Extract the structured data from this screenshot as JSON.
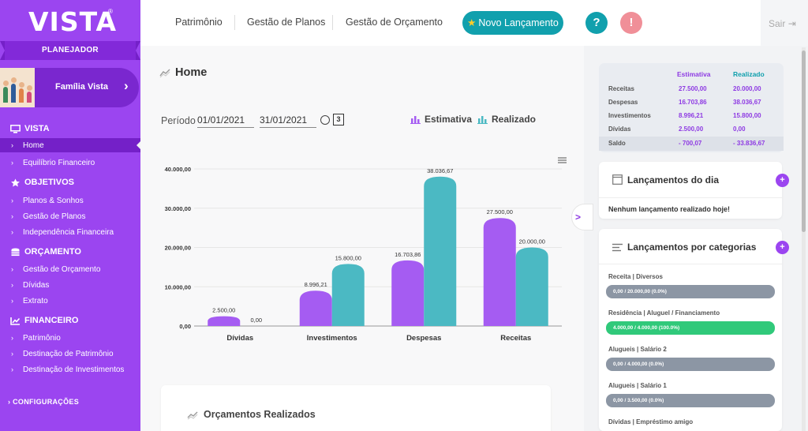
{
  "brand": {
    "logo": "VISTA",
    "logo_mark": "®",
    "role": "PLANEJADOR"
  },
  "family": {
    "name": "Família Vista"
  },
  "sidebar": {
    "sections": [
      {
        "title": "VISTA",
        "icon": "monitor-icon",
        "items": [
          "Home",
          "Equilíbrio Financeiro"
        ]
      },
      {
        "title": "OBJETIVOS",
        "icon": "star-icon",
        "items": [
          "Planos & Sonhos",
          "Gestão de Planos",
          "Independência Financeira"
        ]
      },
      {
        "title": "ORÇAMENTO",
        "icon": "coins-icon",
        "items": [
          "Gestão de Orçamento",
          "Dívidas",
          "Extrato"
        ]
      },
      {
        "title": "FINANCEIRO",
        "icon": "line-chart-icon",
        "items": [
          "Patrimônio",
          "Destinação de Patrimônio",
          "Destinação de Investimentos"
        ]
      }
    ],
    "active_item": "Home",
    "config": "CONFIGURAÇÕES"
  },
  "topbar": {
    "nav": [
      "Patrimônio",
      "Gestão de Planos",
      "Gestão de Orçamento"
    ],
    "new_button": "Novo Lançamento",
    "help": "?",
    "alert": "!",
    "logout": "Sair"
  },
  "main": {
    "title": "Home",
    "periodo_label": "Período",
    "date_from": "01/01/2021",
    "date_to": "31/01/2021",
    "history_count": "3",
    "legend_estimativa": "Estimativa",
    "legend_realizado": "Realizado",
    "bottom_card_title": "Orçamentos Realizados"
  },
  "colors": {
    "estimativa": "#a55cf2",
    "realizado": "#4bb9c3",
    "sidebar": "#9b45f0",
    "accent": "#11a0ad"
  },
  "chart_data": {
    "type": "bar",
    "categories": [
      "Dívidas",
      "Investimentos",
      "Despesas",
      "Receitas"
    ],
    "series": [
      {
        "name": "Estimativa",
        "values": [
          2500,
          8996.21,
          16703.86,
          27500
        ],
        "labels": [
          "2.500,00",
          "8.996,21",
          "16.703,86",
          "27.500,00"
        ]
      },
      {
        "name": "Realizado",
        "values": [
          0,
          15800,
          38036.67,
          20000
        ],
        "labels": [
          "0,00",
          "15.800,00",
          "38.036,67",
          "20.000,00"
        ]
      }
    ],
    "yticks": [
      0,
      10000,
      20000,
      30000,
      40000
    ],
    "ytick_labels": [
      "0,00",
      "10.000,00",
      "20.000,00",
      "30.000,00",
      "40.000,00"
    ],
    "ylim": [
      0,
      40000
    ],
    "grid": true,
    "legend": "top"
  },
  "summary": {
    "col_estimativa": "Estimativa",
    "col_realizado": "Realizado",
    "rows": [
      {
        "label": "Receitas",
        "est": "27.500,00",
        "rea": "20.000,00"
      },
      {
        "label": "Despesas",
        "est": "16.703,86",
        "rea": "38.036,67"
      },
      {
        "label": "Investimentos",
        "est": "8.996,21",
        "rea": "15.800,00"
      },
      {
        "label": "Dívidas",
        "est": "2.500,00",
        "rea": "0,00"
      },
      {
        "label": "Saldo",
        "est": "- 700,07",
        "rea": "- 33.836,67"
      }
    ]
  },
  "lancamentos_dia": {
    "title": "Lançamentos do dia",
    "empty": "Nenhum lançamento realizado hoje!"
  },
  "lancamentos_categorias": {
    "title": "Lançamentos por categorias",
    "items": [
      {
        "label": "Receita | Diversos",
        "value": "0,00  /  20.000,00 (0.0%)",
        "pct": 0
      },
      {
        "label": "Residência | Aluguel / Financiamento",
        "value": "4.000,00 /  4.000,00 (100.0%)",
        "pct": 100
      },
      {
        "label": "Alugueis | Salário 2",
        "value": "0,00  /  4.000,00 (0.0%)",
        "pct": 0
      },
      {
        "label": "Alugueis | Salário 1",
        "value": "0,00  /  3.500,00 (0.0%)",
        "pct": 0
      },
      {
        "label": "Dívidas | Empréstimo amigo",
        "value": "",
        "pct": 0
      }
    ]
  }
}
